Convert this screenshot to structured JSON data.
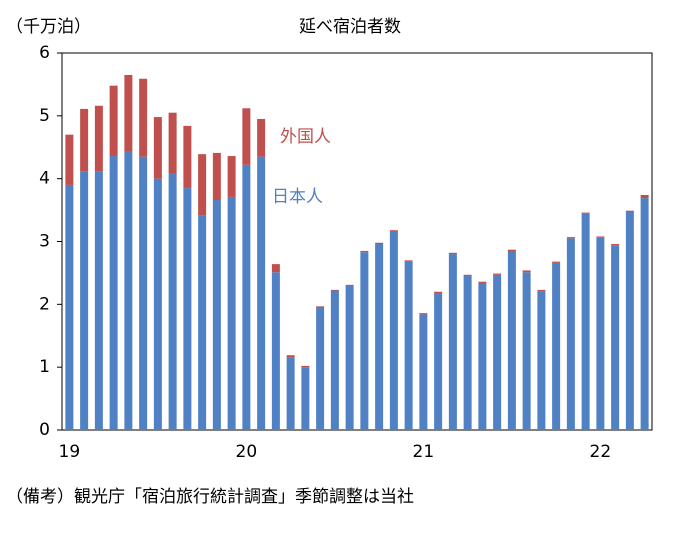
{
  "chart_data": {
    "type": "bar",
    "stacked": true,
    "title": "延べ宿泊者数",
    "y_label": "（千万泊）",
    "note": "（備考）観光庁「宿泊旅行統計調査」季節調整は当社",
    "categories": [
      "19",
      null,
      null,
      null,
      null,
      null,
      null,
      null,
      null,
      null,
      null,
      null,
      "20",
      null,
      null,
      null,
      null,
      null,
      null,
      null,
      null,
      null,
      null,
      null,
      "21",
      null,
      null,
      null,
      null,
      null,
      null,
      null,
      null,
      null,
      null,
      null,
      "22",
      null,
      null,
      null
    ],
    "series": [
      {
        "name": "日本人",
        "color": "#4f81c4",
        "values": [
          3.9,
          4.12,
          4.12,
          4.36,
          4.44,
          4.35,
          4.0,
          4.09,
          3.85,
          3.42,
          3.66,
          3.71,
          4.22,
          4.35,
          2.51,
          1.16,
          1.0,
          1.96,
          2.22,
          2.3,
          2.83,
          2.96,
          3.16,
          2.68,
          1.84,
          2.18,
          2.8,
          2.45,
          2.34,
          2.47,
          2.84,
          2.51,
          2.21,
          2.66,
          3.05,
          3.44,
          3.06,
          2.94,
          3.47,
          3.69
        ]
      },
      {
        "name": "外国人",
        "color": "#c0504d",
        "values": [
          0.8,
          0.99,
          1.04,
          1.12,
          1.21,
          1.24,
          0.98,
          0.96,
          0.99,
          0.97,
          0.75,
          0.65,
          0.9,
          0.6,
          0.13,
          0.03,
          0.02,
          0.01,
          0.01,
          0.01,
          0.02,
          0.02,
          0.02,
          0.02,
          0.02,
          0.02,
          0.02,
          0.02,
          0.02,
          0.02,
          0.03,
          0.03,
          0.02,
          0.02,
          0.02,
          0.02,
          0.02,
          0.02,
          0.02,
          0.05
        ]
      }
    ],
    "ylim": [
      0,
      6
    ],
    "yticks": [
      0,
      1,
      2,
      3,
      4,
      5,
      6
    ]
  }
}
